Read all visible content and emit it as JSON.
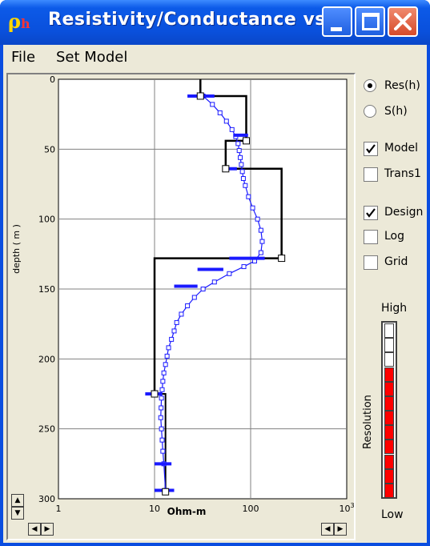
{
  "window": {
    "title": "Resistivity/Conductance  vs...",
    "app_icon_glyph": "ρ",
    "app_icon_sub": "h"
  },
  "menu": {
    "items": [
      "File",
      "Set Model"
    ]
  },
  "chart_data": {
    "type": "line",
    "x_scale": "log",
    "xlim": [
      1,
      1000
    ],
    "ylim": [
      0,
      300
    ],
    "y_inverted": true,
    "xlabel": "Ohm-m",
    "ylabel": "depth ( m )",
    "x_ticks": [
      "1",
      "10",
      "100",
      "10"
    ],
    "x_tick_last_exponent": "3",
    "y_ticks": [
      "0",
      "50",
      "100",
      "150",
      "200",
      "250",
      "300"
    ],
    "grid": true,
    "series": [
      {
        "style": "step-model",
        "color": "#000000",
        "x": [
          30,
          30,
          90,
          90,
          55,
          55,
          210,
          210,
          10
        ],
        "y": [
          0,
          12,
          12,
          44,
          44,
          64,
          64,
          128,
          128
        ],
        "extension": {
          "x": 10,
          "y_to": 225
        }
      },
      {
        "style": "lower-model",
        "color": "#000000",
        "x": [
          10,
          13,
          13
        ],
        "y": [
          225,
          225,
          295
        ]
      },
      {
        "style": "smooth-fit",
        "color": "#1a1aff",
        "x": [
          32,
          40,
          48,
          56,
          64,
          70,
          74,
          76,
          78,
          80,
          82,
          84,
          88,
          95,
          105,
          118,
          128,
          132,
          128,
          110,
          85,
          60,
          42,
          32,
          26,
          22,
          19,
          17,
          16,
          15,
          14,
          13.5,
          13,
          12.5,
          12.2,
          12,
          11.8,
          11.7,
          11.6,
          11.8,
          12,
          12.2,
          12.5,
          13
        ],
        "y": [
          12,
          18,
          24,
          30,
          36,
          41,
          46,
          51,
          56,
          61,
          66,
          71,
          76,
          84,
          92,
          100,
          108,
          116,
          124,
          130,
          134,
          139,
          145,
          150,
          156,
          162,
          168,
          174,
          180,
          186,
          192,
          198,
          204,
          210,
          216,
          222,
          228,
          235,
          242,
          250,
          258,
          266,
          275,
          294
        ]
      }
    ],
    "model_markers": [
      {
        "x": 30,
        "y": 12
      },
      {
        "x": 90,
        "y": 44
      },
      {
        "x": 55,
        "y": 64
      },
      {
        "x": 210,
        "y": 128
      },
      {
        "x": 10,
        "y": 225
      },
      {
        "x": 13,
        "y": 295
      }
    ],
    "error_bars": [
      {
        "x": 32,
        "y": 12,
        "hw": 10
      },
      {
        "x": 80,
        "y": 40,
        "hw": 14
      },
      {
        "x": 62,
        "y": 64,
        "hw": 10
      },
      {
        "x": 100,
        "y": 128,
        "hw": 40
      },
      {
        "x": 40,
        "y": 136,
        "hw": 12
      },
      {
        "x": 22,
        "y": 148,
        "hw": 6
      },
      {
        "x": 10,
        "y": 225,
        "hw": 2
      },
      {
        "x": 12.5,
        "y": 275,
        "hw": 2.5
      },
      {
        "x": 13,
        "y": 294,
        "hw": 3
      }
    ]
  },
  "sidebar": {
    "options": [
      {
        "type": "radio",
        "label": "Res(h)",
        "checked": true
      },
      {
        "type": "radio",
        "label": "S(h)",
        "checked": false
      },
      {
        "type": "check",
        "label": "Model",
        "checked": true
      },
      {
        "type": "check",
        "label": "Trans1",
        "checked": false
      },
      {
        "type": "check",
        "label": "Design",
        "checked": true
      },
      {
        "type": "check",
        "label": "Log",
        "checked": false
      },
      {
        "type": "check",
        "label": "Grid",
        "checked": false
      }
    ],
    "resolution": {
      "label": "Resolution",
      "high": "High",
      "low": "Low",
      "segments": 12,
      "filled_segments": 9,
      "fill_color": "#ff0000",
      "empty_color": "#ffffff"
    }
  },
  "icons": {
    "minimize": "minimize-icon",
    "maximize": "maximize-icon",
    "close": "close-icon",
    "scroll_up": "arrow-up-icon",
    "scroll_down": "arrow-down-icon",
    "scroll_left": "arrow-left-icon",
    "scroll_right": "arrow-right-icon"
  }
}
